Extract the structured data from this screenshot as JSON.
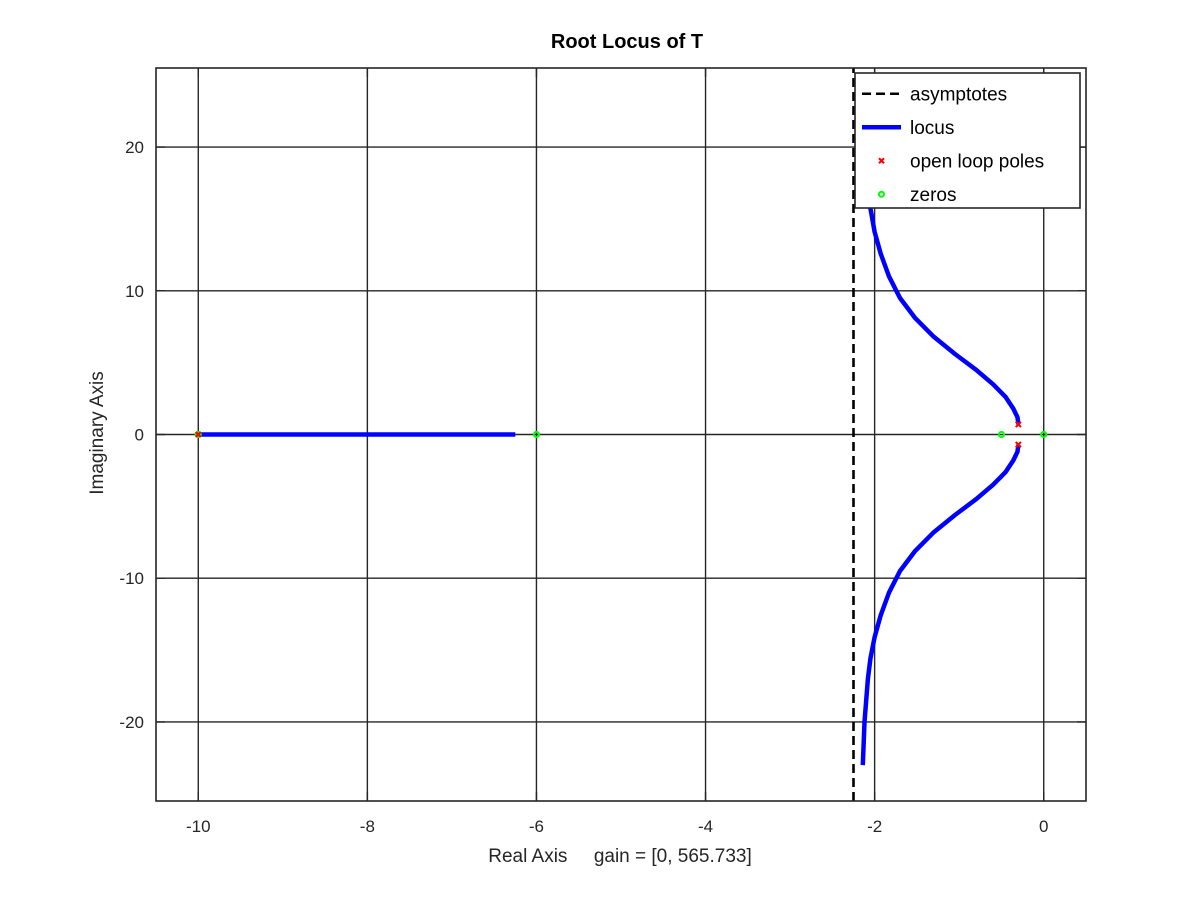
{
  "chart_data": {
    "type": "line",
    "title": "Root Locus of T",
    "xlabel": "Real Axis     gain = [0, 565.733]",
    "ylabel": "Imaginary Axis",
    "xlim": [
      -10.5,
      0.5
    ],
    "ylim": [
      -25.5,
      25.5
    ],
    "xticks": [
      -10,
      -8,
      -6,
      -4,
      -2,
      0
    ],
    "yticks": [
      -20,
      -10,
      0,
      10,
      20
    ],
    "xtick_labels": [
      "-10",
      "-8",
      "-6",
      "-4",
      "-2",
      "0"
    ],
    "ytick_labels": [
      "-20",
      "-10",
      "0",
      "10",
      "20"
    ],
    "grid": true,
    "legend_position": "top-right",
    "legend": [
      {
        "label": "asymptotes",
        "style": "dashed-line",
        "color": "#000000"
      },
      {
        "label": "locus",
        "style": "line",
        "color": "#0000ff"
      },
      {
        "label": "open loop poles",
        "style": "x-marker",
        "color": "#ff0000"
      },
      {
        "label": "zeros",
        "style": "o-marker",
        "color": "#00ff00"
      }
    ],
    "series": [
      {
        "name": "asymptotes",
        "kind": "asymptote",
        "color": "#000000",
        "x": [
          -2.25,
          -2.25
        ],
        "y": [
          -25.5,
          25.5
        ]
      },
      {
        "name": "locus",
        "kind": "branch",
        "color": "#0000ff",
        "x": [
          -10.0,
          -6.25
        ],
        "y": [
          0,
          0
        ]
      },
      {
        "name": "locus",
        "kind": "branch",
        "color": "#0000ff",
        "x": [
          -0.3,
          -0.31,
          -0.36,
          -0.45,
          -0.6,
          -0.8,
          -1.05,
          -1.3,
          -1.52,
          -1.7,
          -1.83,
          -1.93,
          -2.0,
          -2.04,
          -2.07
        ],
        "y": [
          0.7,
          1.2,
          1.8,
          2.6,
          3.5,
          4.5,
          5.6,
          6.8,
          8.1,
          9.5,
          11.0,
          12.6,
          14.1,
          15.4,
          16.4
        ]
      },
      {
        "name": "locus",
        "kind": "branch",
        "color": "#0000ff",
        "x": [
          -0.3,
          -0.31,
          -0.36,
          -0.45,
          -0.6,
          -0.8,
          -1.05,
          -1.3,
          -1.52,
          -1.7,
          -1.83,
          -1.93,
          -2.0,
          -2.05,
          -2.08,
          -2.1,
          -2.12,
          -2.13,
          -2.14
        ],
        "y": [
          -0.7,
          -1.2,
          -1.8,
          -2.6,
          -3.5,
          -4.5,
          -5.6,
          -6.8,
          -8.1,
          -9.5,
          -11.0,
          -12.6,
          -14.1,
          -15.6,
          -17.0,
          -18.5,
          -20.0,
          -21.6,
          -23.0
        ]
      }
    ],
    "open_loop_poles": [
      {
        "x": -10.0,
        "y": 0
      },
      {
        "x": -0.3,
        "y": 0.7
      },
      {
        "x": -0.3,
        "y": -0.7
      }
    ],
    "zeros": [
      {
        "x": -10.0,
        "y": 0
      },
      {
        "x": -6.0,
        "y": 0
      },
      {
        "x": -0.5,
        "y": 0
      },
      {
        "x": 0.0,
        "y": 0
      }
    ]
  }
}
